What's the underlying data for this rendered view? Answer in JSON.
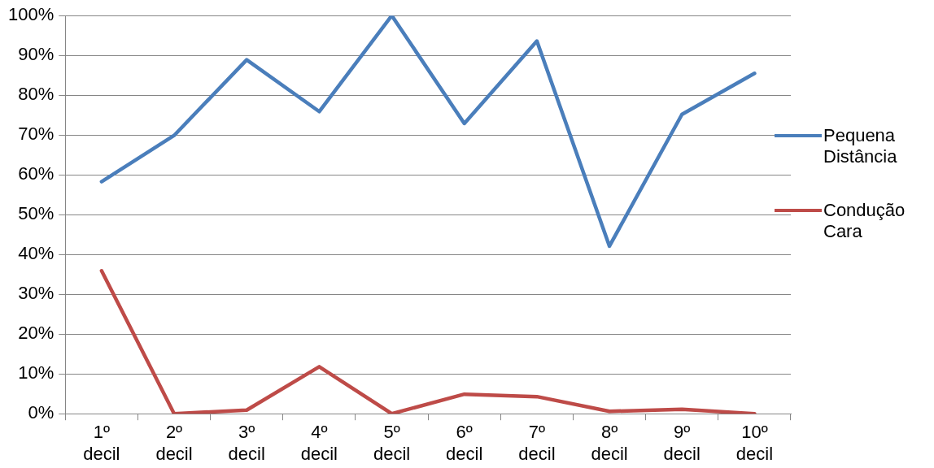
{
  "chart_data": {
    "type": "line",
    "categories": [
      "1º decil",
      "2º decil",
      "3º decil",
      "4º decil",
      "5º decil",
      "6º decil",
      "7º decil",
      "8º decil",
      "9º decil",
      "10º decil"
    ],
    "series": [
      {
        "name": "Pequena Distância",
        "color": "#4a7ebb",
        "values": [
          58.3,
          69.9,
          88.9,
          75.9,
          100,
          72.9,
          93.6,
          42.1,
          75.2,
          85.5
        ]
      },
      {
        "name": "Condução Cara",
        "color": "#be4b48",
        "values": [
          35.9,
          0,
          0.9,
          11.8,
          0,
          4.9,
          4.3,
          0.6,
          1.1,
          0
        ]
      }
    ],
    "ylim": [
      0,
      100
    ],
    "yticks": [
      {
        "value": 0,
        "label": "0%"
      },
      {
        "value": 10,
        "label": "10%"
      },
      {
        "value": 20,
        "label": "20%"
      },
      {
        "value": 30,
        "label": "30%"
      },
      {
        "value": 40,
        "label": "40%"
      },
      {
        "value": 50,
        "label": "50%"
      },
      {
        "value": 60,
        "label": "60%"
      },
      {
        "value": 70,
        "label": "70%"
      },
      {
        "value": 80,
        "label": "80%"
      },
      {
        "value": 90,
        "label": "90%"
      },
      {
        "value": 100,
        "label": "100%"
      }
    ],
    "grid": "y",
    "legend": "right",
    "marker": "none",
    "line_style": "solid"
  }
}
